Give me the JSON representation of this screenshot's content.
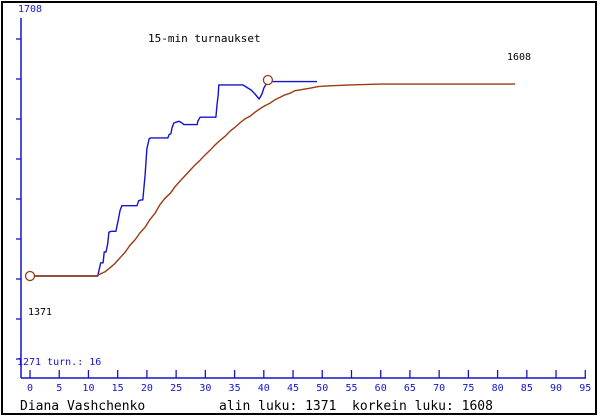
{
  "window": {
    "background": "#ffffff"
  },
  "labels": {
    "y_top": "1708",
    "max_value": "1608",
    "min_value": "1371",
    "bottom_info": "1271 turn.: 16"
  },
  "footer": {
    "player_name": "Diana Vashchenko",
    "stats": "alin luku: 1371  korkein luku: 1608"
  },
  "colors": {
    "axis": "#1414cc",
    "blue_text": "#1414cc",
    "black_text": "#000000",
    "frame": "#000000",
    "marker": "#9a3b10"
  },
  "chart_data": {
    "type": "line",
    "title": "15-min turnaukset",
    "xlabel": "",
    "ylabel": "",
    "x_range": [
      0,
      95
    ],
    "x_ticks": [
      0,
      5,
      10,
      15,
      20,
      25,
      30,
      35,
      40,
      45,
      50,
      55,
      60,
      65,
      70,
      75,
      80,
      85,
      90,
      95
    ],
    "y_axis_top": 1708,
    "y_axis_bottom": 1271,
    "tournament_count": 16,
    "min_rating": 1371,
    "max_rating": 1608,
    "grid": false,
    "legend": "none",
    "series": [
      {
        "name": "rating",
        "color": "#1414cc",
        "points": [
          [
            0,
            1371
          ],
          [
            11.6,
            1371
          ],
          [
            11.8,
            1378
          ],
          [
            12.1,
            1387
          ],
          [
            12.5,
            1387
          ],
          [
            12.7,
            1400
          ],
          [
            13.0,
            1400
          ],
          [
            13.3,
            1410
          ],
          [
            13.5,
            1424
          ],
          [
            13.9,
            1425
          ],
          [
            14.7,
            1425
          ],
          [
            15.1,
            1439
          ],
          [
            15.4,
            1450
          ],
          [
            15.7,
            1456
          ],
          [
            18.3,
            1456
          ],
          [
            18.6,
            1462
          ],
          [
            19.0,
            1463
          ],
          [
            19.3,
            1463
          ],
          [
            19.7,
            1493
          ],
          [
            20.0,
            1525
          ],
          [
            20.4,
            1537
          ],
          [
            20.7,
            1538
          ],
          [
            23.6,
            1538
          ],
          [
            23.8,
            1542
          ],
          [
            24.1,
            1543
          ],
          [
            24.3,
            1550
          ],
          [
            24.6,
            1556
          ],
          [
            25.0,
            1557
          ],
          [
            25.5,
            1558
          ],
          [
            25.8,
            1557
          ],
          [
            26.2,
            1555
          ],
          [
            26.3,
            1554
          ],
          [
            28.6,
            1554
          ],
          [
            28.7,
            1558
          ],
          [
            29.1,
            1563
          ],
          [
            29.6,
            1563
          ],
          [
            31.8,
            1563
          ],
          [
            32.0,
            1578
          ],
          [
            32.2,
            1590
          ],
          [
            32.3,
            1602
          ],
          [
            36.4,
            1602
          ],
          [
            37.8,
            1596
          ],
          [
            38.5,
            1591
          ],
          [
            39.2,
            1585
          ],
          [
            39.7,
            1591
          ],
          [
            40.0,
            1598
          ],
          [
            40.4,
            1603
          ],
          [
            40.7,
            1608
          ],
          [
            41.4,
            1606
          ],
          [
            49.1,
            1606
          ]
        ]
      },
      {
        "name": "average",
        "color": "#9a3b10",
        "points": [
          [
            0,
            1371
          ],
          [
            11.3,
            1371
          ],
          [
            12.8,
            1376
          ],
          [
            13.7,
            1381
          ],
          [
            14.5,
            1386
          ],
          [
            15.4,
            1393
          ],
          [
            16.3,
            1400
          ],
          [
            17.1,
            1408
          ],
          [
            18.0,
            1415
          ],
          [
            18.8,
            1423
          ],
          [
            19.7,
            1430
          ],
          [
            20.5,
            1439
          ],
          [
            21.4,
            1447
          ],
          [
            22.2,
            1457
          ],
          [
            23.1,
            1465
          ],
          [
            24.0,
            1471
          ],
          [
            24.8,
            1479
          ],
          [
            25.7,
            1486
          ],
          [
            26.5,
            1492
          ],
          [
            27.4,
            1499
          ],
          [
            28.2,
            1505
          ],
          [
            29.1,
            1511
          ],
          [
            29.9,
            1517
          ],
          [
            30.8,
            1523
          ],
          [
            31.6,
            1529
          ],
          [
            32.5,
            1535
          ],
          [
            33.4,
            1540
          ],
          [
            34.2,
            1546
          ],
          [
            35.1,
            1551
          ],
          [
            35.9,
            1556
          ],
          [
            36.8,
            1561
          ],
          [
            37.6,
            1564
          ],
          [
            38.5,
            1569
          ],
          [
            39.3,
            1573
          ],
          [
            40.2,
            1577
          ],
          [
            41.1,
            1580
          ],
          [
            41.9,
            1584
          ],
          [
            42.8,
            1587
          ],
          [
            43.6,
            1590
          ],
          [
            44.5,
            1592
          ],
          [
            45.3,
            1595
          ],
          [
            46.2,
            1596
          ],
          [
            47.0,
            1597
          ],
          [
            47.9,
            1598
          ],
          [
            49.3,
            1600
          ],
          [
            51.3,
            1601
          ],
          [
            54.8,
            1602
          ],
          [
            59.9,
            1603
          ],
          [
            83.0,
            1603
          ]
        ]
      }
    ],
    "markers": [
      {
        "name": "min-marker",
        "x": 0,
        "y": 1371
      },
      {
        "name": "max-marker",
        "x": 40.7,
        "y": 1608
      }
    ]
  }
}
